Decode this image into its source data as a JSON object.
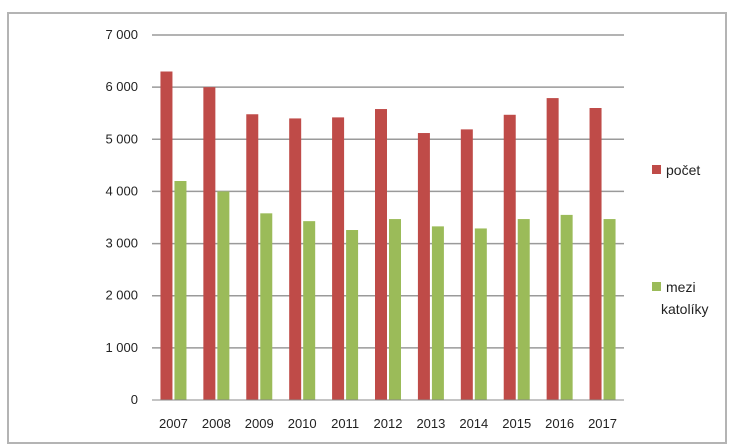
{
  "chart_data": {
    "type": "bar",
    "categories": [
      "2007",
      "2008",
      "2009",
      "2010",
      "2011",
      "2012",
      "2013",
      "2014",
      "2015",
      "2016",
      "2017"
    ],
    "series": [
      {
        "name": "počet",
        "color": "#bf4b48",
        "values": [
          6300,
          6000,
          5480,
          5400,
          5420,
          5580,
          5120,
          5190,
          5470,
          5790,
          5600
        ]
      },
      {
        "name": "mezi katolíky",
        "name_lines": [
          "mezi",
          "katolíky"
        ],
        "color": "#9bbb59",
        "values": [
          4200,
          4000,
          3580,
          3430,
          3260,
          3470,
          3330,
          3290,
          3470,
          3550,
          3470
        ]
      }
    ],
    "yticks": [
      0,
      1000,
      2000,
      3000,
      4000,
      5000,
      6000,
      7000
    ],
    "ytick_labels": [
      "0",
      "1 000",
      "2 000",
      "3 000",
      "4 000",
      "5 000",
      "6 000",
      "7 000"
    ],
    "ylim": [
      0,
      7000
    ],
    "grid": true,
    "legend": "right",
    "title": "",
    "xlabel": "",
    "ylabel": ""
  }
}
